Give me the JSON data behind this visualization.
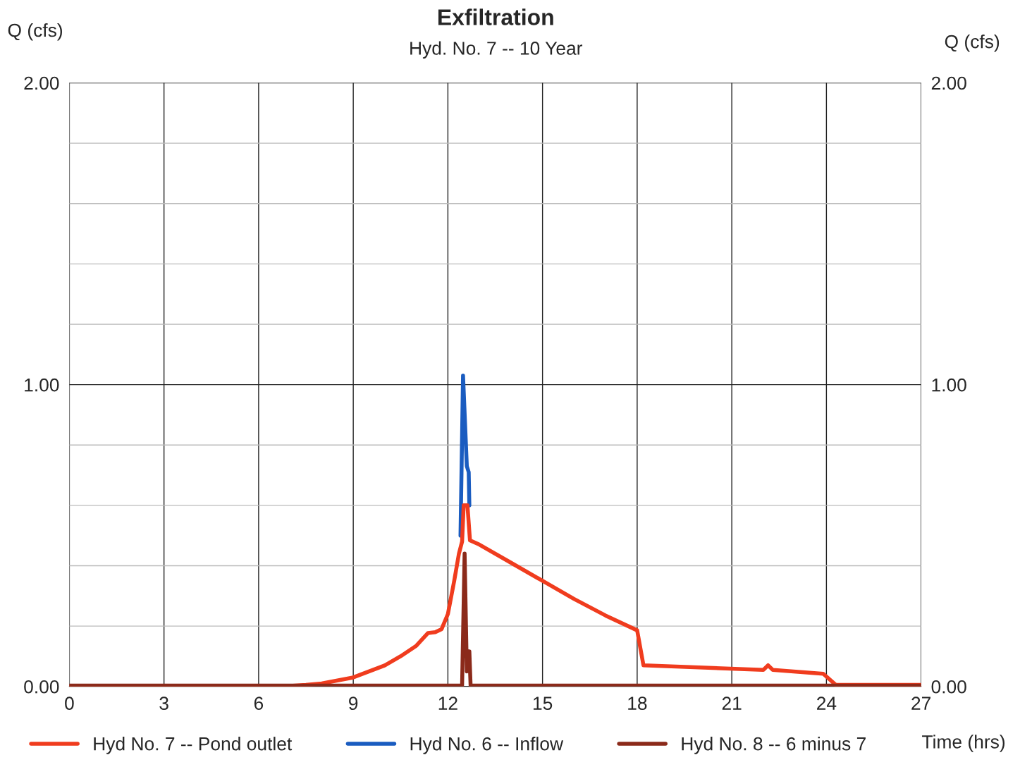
{
  "chart_data": {
    "type": "line",
    "title": "Exfiltration",
    "subtitle": "Hyd. No. 7 -- 10 Year",
    "xlabel": "Time (hrs)",
    "ylabel": "Q (cfs)",
    "y2label": "Q (cfs)",
    "xlim": [
      0,
      27
    ],
    "xticks": [
      0,
      3,
      6,
      9,
      12,
      15,
      18,
      21,
      24,
      27
    ],
    "ylim": [
      0,
      2
    ],
    "yticks": [
      {
        "value": 0,
        "label": "0.00"
      },
      {
        "value": 0.2,
        "label": null
      },
      {
        "value": 0.4,
        "label": null
      },
      {
        "value": 0.6,
        "label": null
      },
      {
        "value": 0.8,
        "label": null
      },
      {
        "value": 1,
        "label": "1.00"
      },
      {
        "value": 1.2,
        "label": null
      },
      {
        "value": 1.4,
        "label": null
      },
      {
        "value": 1.6,
        "label": null
      },
      {
        "value": 1.8,
        "label": null
      },
      {
        "value": 2,
        "label": "2.00"
      }
    ],
    "y2lim": [
      0,
      2
    ],
    "y2ticks": [
      {
        "value": 0,
        "label": "0.00"
      },
      {
        "value": 1,
        "label": "1.00"
      },
      {
        "value": 2,
        "label": "2.00"
      }
    ],
    "grid": true,
    "legend": "bottom",
    "line_style": "solid",
    "marker": "none",
    "series": [
      {
        "name": "Hyd No. 6 -- Inflow",
        "color": "#1a5cc0",
        "x": [
          12.4,
          12.48,
          12.6,
          12.66,
          12.68
        ],
        "values": [
          0.5,
          1.03,
          0.73,
          0.71,
          0.6
        ]
      },
      {
        "name": "Hyd No. 7 -- Pond outlet",
        "color": "#f03c1e",
        "x": [
          0,
          7,
          7.5,
          8,
          8.5,
          9,
          9.5,
          10,
          10.5,
          11,
          11.37,
          11.6,
          11.8,
          12.0,
          12.2,
          12.35,
          12.45,
          12.5,
          12.62,
          12.7,
          13,
          14,
          15,
          16,
          17,
          18,
          18.2,
          22.0,
          22.15,
          22.3,
          23.9,
          24.3,
          27
        ],
        "values": [
          0,
          0.002,
          0.005,
          0.01,
          0.02,
          0.03,
          0.05,
          0.07,
          0.1,
          0.135,
          0.177,
          0.18,
          0.19,
          0.24,
          0.35,
          0.44,
          0.48,
          0.6,
          0.6,
          0.484,
          0.47,
          0.41,
          0.35,
          0.29,
          0.235,
          0.186,
          0.07,
          0.055,
          0.07,
          0.055,
          0.042,
          0.005,
          0.005
        ]
      },
      {
        "name": "Hyd No. 8 -- 6 minus 7",
        "color": "#8b2a1a",
        "x": [
          0,
          12.45,
          12.53,
          12.6,
          12.65,
          12.68,
          12.72,
          27
        ],
        "values": [
          0.003,
          0.003,
          0.44,
          0.05,
          0.116,
          0.116,
          0.003,
          0.003
        ]
      }
    ]
  }
}
